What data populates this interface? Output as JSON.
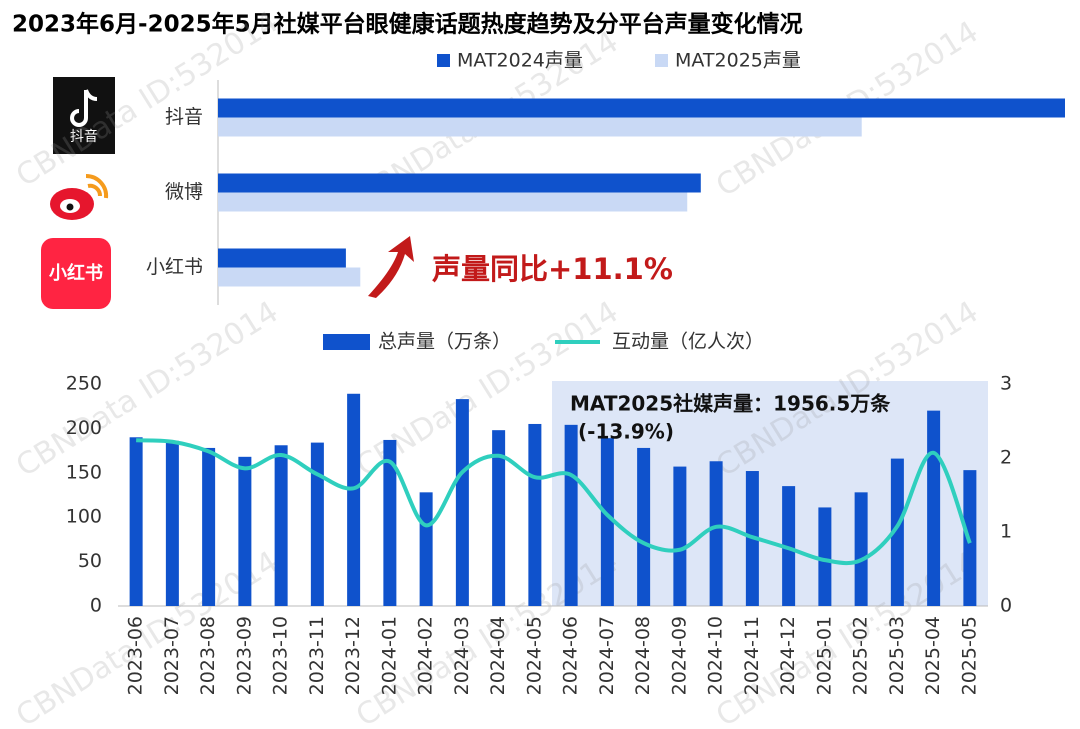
{
  "title": "2023年6月-2025年5月社媒平台眼健康话题热度趋势及分平台声量变化情况",
  "watermark": "CBNData ID:532014",
  "chart_data": [
    {
      "type": "hbar",
      "categories": [
        "抖音",
        "微博",
        "小红书"
      ],
      "series": [
        {
          "name": "MAT2024声量",
          "color": "#0f52cc",
          "values": [
            100,
            57,
            15.1
          ]
        },
        {
          "name": "MAT2025声量",
          "color": "#c9d9f5",
          "values": [
            76,
            55.4,
            16.8
          ]
        }
      ],
      "xlim": [
        0,
        100
      ],
      "annotation": "声量同比+11.1%"
    },
    {
      "type": "combo",
      "categories": [
        "2023-06",
        "2023-07",
        "2023-08",
        "2023-09",
        "2023-10",
        "2023-11",
        "2023-12",
        "2024-01",
        "2024-02",
        "2024-03",
        "2024-04",
        "2024-05",
        "2024-06",
        "2024-07",
        "2024-08",
        "2024-09",
        "2024-10",
        "2024-11",
        "2024-12",
        "2025-01",
        "2025-02",
        "2025-03",
        "2025-04",
        "2025-05"
      ],
      "series": [
        {
          "name": "总声量（万条）",
          "type": "bar",
          "color": "#0f52cc",
          "values": [
            190,
            186,
            178,
            168,
            181,
            184,
            239,
            187,
            128,
            233,
            198,
            205,
            204,
            189,
            178,
            157,
            163,
            152,
            135,
            111,
            128,
            166,
            220,
            153
          ]
        },
        {
          "name": "互动量（亿人次）",
          "type": "line",
          "axis": "y2",
          "color": "#2fcfbe",
          "values": [
            2.24,
            2.22,
            2.09,
            1.86,
            2.04,
            1.78,
            1.59,
            1.95,
            1.09,
            1.81,
            2.03,
            1.74,
            1.77,
            1.23,
            0.85,
            0.76,
            1.07,
            0.93,
            0.78,
            0.62,
            0.62,
            1.08,
            2.07,
            0.85
          ]
        }
      ],
      "ylim": [
        0,
        250
      ],
      "yticks": [
        0,
        50,
        100,
        150,
        200,
        250
      ],
      "y2lim": [
        0,
        3
      ],
      "y2ticks": [
        0,
        1,
        2,
        3
      ],
      "annotation": [
        "MAT2025社媒声量：1956.5万条",
        "(-13.9%)"
      ]
    }
  ]
}
